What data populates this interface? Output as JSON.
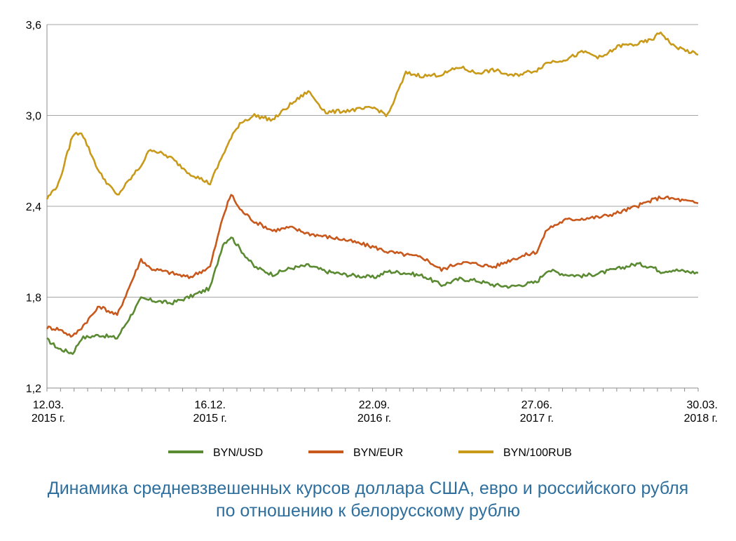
{
  "chart_data": {
    "type": "line",
    "title": "Динамика средневзвешенных курсов доллара США, евро и российского рубля по отношению к белорусскому рублю",
    "title_lines": [
      "Динамика средневзвешенных курсов доллара США, евро и российского рубля",
      "по отношению к белорусскому рублю"
    ],
    "xlabel": "",
    "ylabel": "",
    "ylim": [
      1.2,
      3.6
    ],
    "yticks": [
      "1,2",
      "1,8",
      "2,4",
      "3,0",
      "3,6"
    ],
    "xlim": [
      "2015-03-12",
      "2018-03-30"
    ],
    "xticks": [
      {
        "date": "2015-03-12",
        "label1": "12.03.",
        "label2": "2015 г."
      },
      {
        "date": "2015-12-16",
        "label1": "16.12.",
        "label2": "2015 г."
      },
      {
        "date": "2016-09-22",
        "label1": "22.09.",
        "label2": "2016 г."
      },
      {
        "date": "2017-06-27",
        "label1": "27.06.",
        "label2": "2017 г."
      },
      {
        "date": "2018-03-30",
        "label1": "30.03.",
        "label2": "2018 г."
      }
    ],
    "grid": "horizontal",
    "legend_position": "bottom",
    "series": [
      {
        "name": "BYN/USD",
        "color": "#5a8a32",
        "x": [
          "2015-03-12",
          "2015-04-01",
          "2015-04-25",
          "2015-05-10",
          "2015-06-10",
          "2015-07-10",
          "2015-08-20",
          "2015-09-05",
          "2015-10-10",
          "2015-11-10",
          "2015-12-16",
          "2016-01-07",
          "2016-01-21",
          "2016-02-05",
          "2016-03-01",
          "2016-04-01",
          "2016-05-01",
          "2016-06-01",
          "2016-07-01",
          "2016-08-01",
          "2016-09-22",
          "2016-10-15",
          "2016-11-15",
          "2016-12-15",
          "2017-01-15",
          "2017-02-15",
          "2017-03-15",
          "2017-04-15",
          "2017-05-15",
          "2017-06-27",
          "2017-07-15",
          "2017-08-15",
          "2017-09-15",
          "2017-10-15",
          "2017-11-15",
          "2017-12-15",
          "2018-01-10",
          "2018-01-25",
          "2018-02-15",
          "2018-03-30"
        ],
        "values": [
          1.52,
          1.46,
          1.43,
          1.53,
          1.55,
          1.53,
          1.79,
          1.78,
          1.76,
          1.8,
          1.86,
          2.15,
          2.2,
          2.12,
          2.0,
          1.95,
          1.99,
          2.01,
          1.97,
          1.95,
          1.93,
          1.97,
          1.96,
          1.94,
          1.88,
          1.92,
          1.91,
          1.88,
          1.87,
          1.9,
          1.98,
          1.95,
          1.94,
          1.96,
          1.99,
          2.02,
          2.0,
          1.97,
          1.98,
          1.96
        ]
      },
      {
        "name": "BYN/EUR",
        "color": "#c8581c",
        "x": [
          "2015-03-12",
          "2015-04-01",
          "2015-04-25",
          "2015-05-10",
          "2015-06-10",
          "2015-07-10",
          "2015-08-20",
          "2015-09-05",
          "2015-10-10",
          "2015-11-10",
          "2015-12-16",
          "2016-01-07",
          "2016-01-21",
          "2016-02-05",
          "2016-03-01",
          "2016-04-01",
          "2016-05-01",
          "2016-06-01",
          "2016-07-01",
          "2016-08-01",
          "2016-09-22",
          "2016-10-15",
          "2016-11-15",
          "2016-12-15",
          "2017-01-15",
          "2017-02-15",
          "2017-03-15",
          "2017-04-15",
          "2017-05-15",
          "2017-06-27",
          "2017-07-15",
          "2017-08-15",
          "2017-09-15",
          "2017-10-15",
          "2017-11-15",
          "2017-12-15",
          "2018-01-10",
          "2018-01-25",
          "2018-02-15",
          "2018-03-30"
        ],
        "values": [
          1.6,
          1.59,
          1.54,
          1.6,
          1.74,
          1.68,
          2.05,
          1.99,
          1.96,
          1.93,
          2.0,
          2.33,
          2.48,
          2.38,
          2.3,
          2.24,
          2.26,
          2.22,
          2.2,
          2.18,
          2.13,
          2.1,
          2.08,
          2.06,
          1.98,
          2.03,
          2.02,
          2.0,
          2.05,
          2.1,
          2.25,
          2.31,
          2.32,
          2.33,
          2.36,
          2.4,
          2.44,
          2.46,
          2.45,
          2.42
        ]
      },
      {
        "name": "BYN/100RUB",
        "color": "#c99a1a",
        "x": [
          "2015-03-12",
          "2015-04-01",
          "2015-04-25",
          "2015-05-10",
          "2015-06-10",
          "2015-07-10",
          "2015-08-20",
          "2015-09-05",
          "2015-10-10",
          "2015-11-10",
          "2015-12-16",
          "2016-01-07",
          "2016-01-21",
          "2016-02-05",
          "2016-03-01",
          "2016-04-01",
          "2016-05-01",
          "2016-06-01",
          "2016-07-01",
          "2016-08-01",
          "2016-09-22",
          "2016-10-15",
          "2016-11-15",
          "2016-12-15",
          "2017-01-15",
          "2017-02-15",
          "2017-03-15",
          "2017-04-15",
          "2017-05-15",
          "2017-06-27",
          "2017-07-15",
          "2017-08-15",
          "2017-09-15",
          "2017-10-15",
          "2017-11-15",
          "2017-12-15",
          "2018-01-10",
          "2018-01-25",
          "2018-02-15",
          "2018-03-30"
        ],
        "values": [
          2.45,
          2.55,
          2.87,
          2.89,
          2.62,
          2.47,
          2.67,
          2.78,
          2.72,
          2.62,
          2.55,
          2.74,
          2.85,
          2.95,
          3.0,
          2.97,
          3.07,
          3.16,
          3.02,
          3.03,
          3.05,
          3.0,
          3.28,
          3.26,
          3.27,
          3.32,
          3.28,
          3.3,
          3.26,
          3.3,
          3.35,
          3.37,
          3.42,
          3.38,
          3.46,
          3.47,
          3.5,
          3.55,
          3.46,
          3.4
        ]
      }
    ]
  }
}
